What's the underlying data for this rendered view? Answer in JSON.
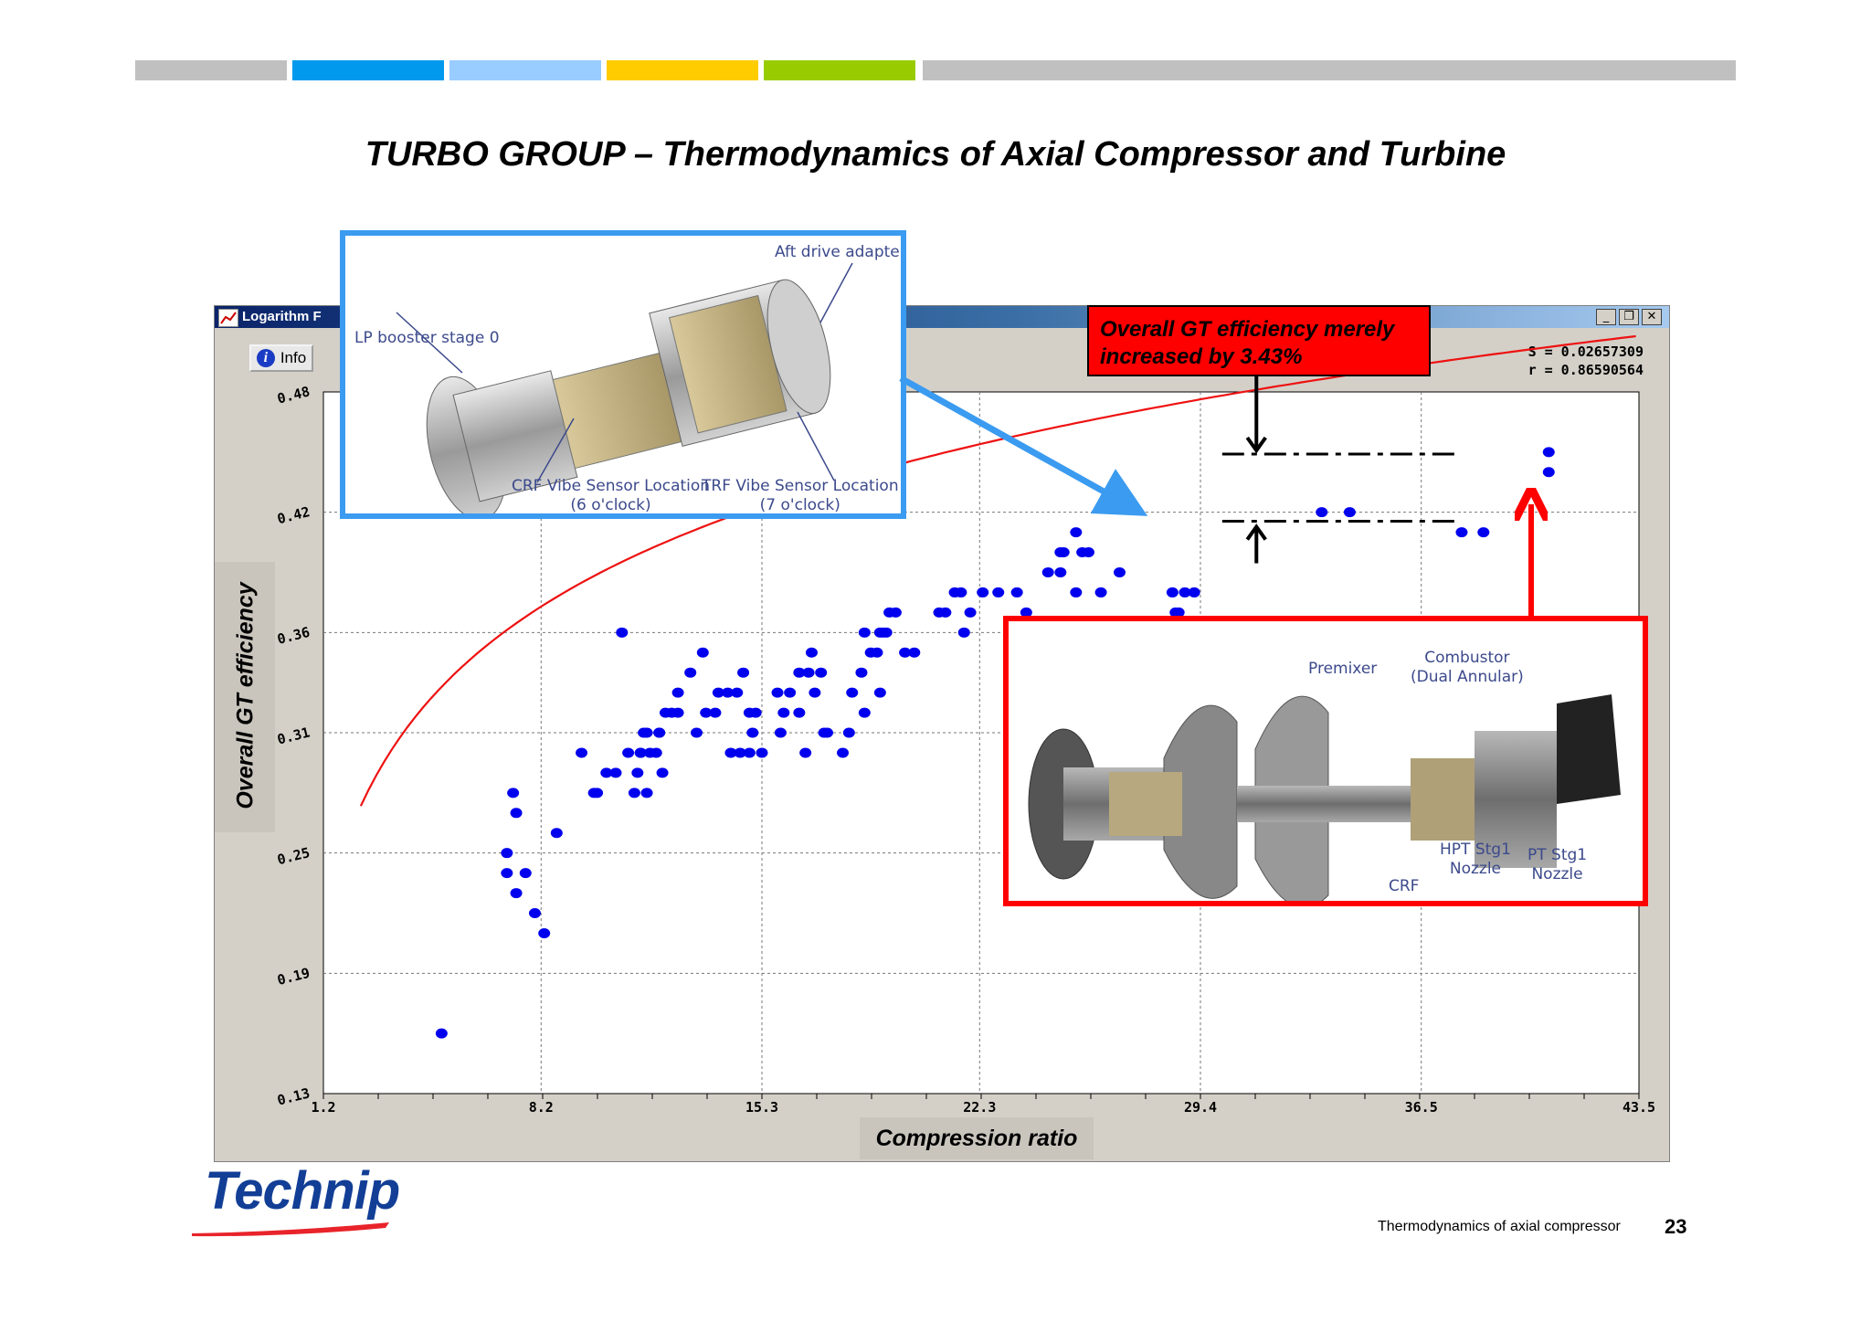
{
  "colors": {
    "bar_gray": "#c0c0c0",
    "bar_blue": "#0099ee",
    "bar_lightblue": "#99ccff",
    "bar_yellow": "#ffcc00",
    "bar_green": "#99cc00",
    "point_color": "#0000ee",
    "fit_color": "#ee1111",
    "accent_blue": "#3b9bf0",
    "accent_red": "#ff0000",
    "logo_blue": "#123e96"
  },
  "slide": {
    "title": "TURBO GROUP – Thermodynamics of Axial Compressor and Turbine",
    "footer_text": "Thermodynamics of  axial compressor",
    "page_number": "23",
    "logo_text": "Technip"
  },
  "window": {
    "title": "Logarithm F",
    "info_label": "Info",
    "stats_s": "S = 0.02657309",
    "stats_r": "r = 0.86590564",
    "buttons": [
      "minimize-icon",
      "restore-icon",
      "close-icon"
    ]
  },
  "callout": {
    "line1": "Overall GT efficiency merely",
    "line2": "increased by 3.43%"
  },
  "inset_top": {
    "labels": {
      "aft": "Aft drive adapter",
      "lp": "LP booster stage 0",
      "crf1": "CRF Vibe Sensor Location",
      "crf2": "(6 o'clock)",
      "trf1": "TRF Vibe Sensor Location",
      "trf2": "(7 o'clock)"
    }
  },
  "inset_bottom": {
    "labels": {
      "premixer": "Premixer",
      "combustor1": "Combustor",
      "combustor2": "(Dual Annular)",
      "hpt1": "HPT Stg1",
      "hpt2": "Nozzle",
      "pt1": "PT Stg1",
      "pt2": "Nozzle",
      "crf": "CRF"
    }
  },
  "chart_data": {
    "type": "scatter",
    "title": "",
    "xlabel": "Compression ratio",
    "ylabel": "Overall GT efficiency",
    "xlim": [
      1.2,
      43.5
    ],
    "ylim": [
      0.13,
      0.48
    ],
    "xticks": [
      "1.2",
      "8.2",
      "15.3",
      "22.3",
      "29.4",
      "36.5",
      "43.5"
    ],
    "yticks": [
      "0.13",
      "0.19",
      "0.25",
      "0.31",
      "0.36",
      "0.42",
      "0.48"
    ],
    "grid": true,
    "series": [
      {
        "kind": "points",
        "x": [
          5.0,
          7.1,
          7.4,
          7.7,
          8.0,
          8.3,
          7.1,
          7.4,
          7.3,
          8.7,
          9.5,
          11.2,
          11.6,
          11.9,
          11.3,
          11.4,
          11.5,
          12.0,
          12.2,
          12.4,
          12.6,
          12.1,
          13.5,
          13.8,
          14.2,
          14.5,
          14.7,
          14.3,
          14.9,
          15.1,
          15.3,
          15.8,
          16.0,
          16.5,
          16.8,
          17.0,
          16.5,
          16.2,
          16.9,
          17.2,
          18.2,
          18.5,
          18.8,
          19.0,
          19.1,
          19.2,
          19.3,
          19.4,
          19.6,
          18.6,
          17.4,
          17.9,
          18.1,
          19.1,
          19.9,
          20.2,
          21.0,
          21.8,
          22.0,
          21.2,
          21.7,
          21.5,
          22.4,
          22.9,
          23.5,
          24.5,
          25.0,
          25.6,
          25.8,
          25.4,
          24.9,
          26.8,
          23.8,
          25.4,
          26.2,
          28.6,
          28.5,
          28.9,
          28.7,
          29.2,
          10.8,
          12.6,
          13.9,
          17.3,
          14.6,
          14.9,
          16.7,
          18.6,
          24.9,
          28.5,
          33.3,
          34.2,
          37.8,
          38.5,
          40.6,
          40.6,
          9.9,
          10.0,
          10.3,
          10.6,
          11.0,
          11.4,
          11.7,
          12.0,
          11.6,
          13.0,
          13.4,
          13.2,
          15.0,
          15.9
        ],
        "y": [
          0.16,
          0.24,
          0.23,
          0.24,
          0.22,
          0.21,
          0.25,
          0.27,
          0.28,
          0.26,
          0.3,
          0.28,
          0.28,
          0.3,
          0.29,
          0.3,
          0.31,
          0.31,
          0.32,
          0.32,
          0.33,
          0.29,
          0.32,
          0.32,
          0.33,
          0.33,
          0.34,
          0.3,
          0.32,
          0.32,
          0.3,
          0.33,
          0.32,
          0.34,
          0.34,
          0.33,
          0.32,
          0.33,
          0.35,
          0.34,
          0.33,
          0.34,
          0.35,
          0.35,
          0.36,
          0.36,
          0.36,
          0.37,
          0.37,
          0.36,
          0.31,
          0.3,
          0.31,
          0.33,
          0.35,
          0.35,
          0.37,
          0.36,
          0.37,
          0.37,
          0.38,
          0.38,
          0.38,
          0.38,
          0.38,
          0.39,
          0.4,
          0.4,
          0.4,
          0.41,
          0.4,
          0.39,
          0.37,
          0.38,
          0.38,
          0.37,
          0.38,
          0.38,
          0.37,
          0.38,
          0.36,
          0.32,
          0.33,
          0.31,
          0.3,
          0.3,
          0.3,
          0.32,
          0.39,
          0.36,
          0.42,
          0.42,
          0.41,
          0.41,
          0.44,
          0.45,
          0.28,
          0.28,
          0.29,
          0.29,
          0.3,
          0.3,
          0.3,
          0.31,
          0.31,
          0.34,
          0.35,
          0.31,
          0.31,
          0.31
        ]
      },
      {
        "kind": "fit",
        "equation": "y = 0.2026 + 0.08095 * ln(x)",
        "x_range": [
          2.4,
          43.5
        ]
      }
    ],
    "annotation": {
      "upper_level": 0.449,
      "lower_level": 0.4155,
      "x_span": [
        30.1,
        37.6
      ]
    }
  }
}
